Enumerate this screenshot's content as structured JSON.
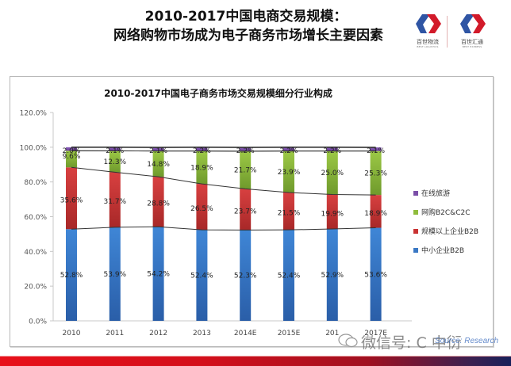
{
  "header": {
    "title_line1": "2010-2017中国电商交易规模：",
    "title_line2": "网络购物市场成为电子商务市场增长主要因素",
    "logos": [
      {
        "name": "百世物流",
        "sub": "BEST LOGISTICS",
        "icon": "best-logistics-logo-icon"
      },
      {
        "name": "百世汇通",
        "sub": "BEST EXPRESS",
        "icon": "best-express-logo-icon"
      }
    ]
  },
  "watermark": {
    "text": "微信号: C   中衍",
    "source": "Source: Research"
  },
  "colors": {
    "travel": "#7b4fa8",
    "b2c_c2c": "#8fbc3c",
    "large_b2b": "#c93232",
    "sme_b2b": "#3a78c4",
    "line": "#333333",
    "bottom_bar_start": "#e8101a",
    "bottom_bar_end": "#18205a"
  },
  "chart_data": {
    "type": "bar",
    "stacked": true,
    "title": "2010-2017中国电子商务市场交易规模细分行业构成",
    "xlabel": "",
    "ylabel": "",
    "ylim": [
      0,
      120
    ],
    "yticks": [
      "0.0%",
      "20.0%",
      "40.0%",
      "60.0%",
      "80.0%",
      "100.0%",
      "120.0%"
    ],
    "ytick_values": [
      0,
      20,
      40,
      60,
      80,
      100,
      120
    ],
    "categories": [
      "2010",
      "2011",
      "2012",
      "2013",
      "2014E",
      "2015E",
      "2016E",
      "2017E"
    ],
    "category_labels_visible": [
      "2010",
      "2011",
      "2012",
      "2013",
      "2014E",
      "2015E",
      "201",
      "2017E"
    ],
    "grid": false,
    "legend_position": "right",
    "series": [
      {
        "name": "中小企业B2B",
        "key": "sme_b2b",
        "values": [
          52.8,
          53.9,
          54.2,
          52.4,
          52.3,
          52.4,
          52.9,
          53.6
        ],
        "labels": [
          "52.8%",
          "53.9%",
          "54.2%",
          "52.4%",
          "52.3%",
          "52.4%",
          "52.9%",
          "53.6%"
        ]
      },
      {
        "name": "规模以上企业B2B",
        "key": "large_b2b",
        "values": [
          35.6,
          31.7,
          28.8,
          26.5,
          23.7,
          21.5,
          19.9,
          18.9
        ],
        "labels": [
          "35.6%",
          "31.7%",
          "28.8%",
          "26.5%",
          "23.7%",
          "21.5%",
          "19.9%",
          "18.9%"
        ]
      },
      {
        "name": "网购B2C&C2C",
        "key": "b2c_c2c",
        "values": [
          9.6,
          12.3,
          14.8,
          18.9,
          21.7,
          23.9,
          25.0,
          25.3
        ],
        "labels": [
          "9.6%",
          "12.3%",
          "14.8%",
          "18.9%",
          "21.7%",
          "23.9%",
          "25.0%",
          "25.3%"
        ]
      },
      {
        "name": "在线旅游",
        "key": "travel",
        "values": [
          2.0,
          2.1,
          2.1,
          2.2,
          2.2,
          2.2,
          2.2,
          2.1
        ],
        "labels": [
          "2.0%",
          "2.1%",
          "2.1%",
          "2.2%",
          "2.2%",
          "2.2%",
          "2.2%",
          "2.1%"
        ]
      }
    ],
    "legend": [
      "在线旅游",
      "网购B2C&C2C",
      "规模以上企业B2B",
      "中小企业B2B"
    ],
    "series_lines": "connectors between stacked segment tops"
  }
}
